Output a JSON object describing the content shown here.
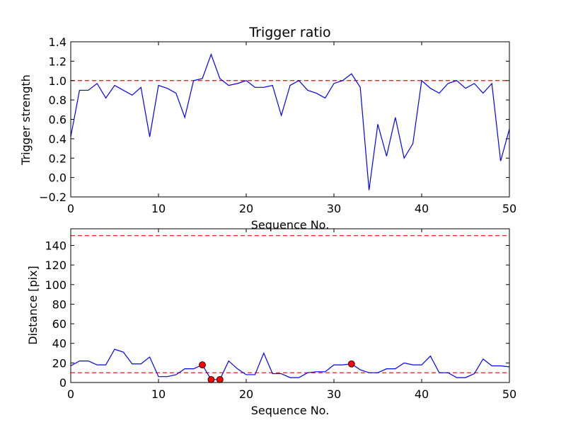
{
  "chart_data": [
    {
      "type": "line",
      "title": "Trigger ratio",
      "xlabel": "Sequence No.",
      "ylabel": "Trigger strength",
      "xlim": [
        0,
        50
      ],
      "ylim": [
        -0.2,
        1.4
      ],
      "xticks": [
        "0",
        "10",
        "20",
        "30",
        "40",
        "50"
      ],
      "yticks": [
        "−0.2",
        "0.0",
        "0.2",
        "0.4",
        "0.6",
        "0.8",
        "1.0",
        "1.2",
        "1.4"
      ],
      "line_color": "#0000ff",
      "threshold_color": "#ff0000",
      "thresholds": [
        1.0
      ],
      "series": [
        {
          "x": [
            0,
            1,
            2,
            3,
            4,
            5,
            6,
            7,
            8,
            9,
            10,
            11,
            12,
            13,
            14,
            15,
            16,
            17,
            18,
            19,
            20,
            21,
            22,
            23,
            24,
            25,
            26,
            27,
            28,
            29,
            30,
            31,
            32,
            33,
            34,
            35,
            36,
            37,
            38,
            39,
            40,
            41,
            42,
            43,
            44,
            45,
            46,
            47,
            48,
            49,
            50
          ],
          "values": [
            0.42,
            0.9,
            0.9,
            0.97,
            0.82,
            0.95,
            0.9,
            0.85,
            0.93,
            0.42,
            0.95,
            0.92,
            0.87,
            0.62,
            1.0,
            1.02,
            1.27,
            1.02,
            0.95,
            0.97,
            1.0,
            0.93,
            0.93,
            0.95,
            0.64,
            0.95,
            1.0,
            0.9,
            0.87,
            0.82,
            0.97,
            1.0,
            1.07,
            0.93,
            -0.13,
            0.55,
            0.22,
            0.62,
            0.2,
            0.35,
            1.0,
            0.92,
            0.87,
            0.97,
            1.0,
            0.92,
            0.97,
            0.87,
            0.97,
            0.17,
            0.5
          ]
        }
      ]
    },
    {
      "type": "line",
      "title": "",
      "xlabel": "Sequence No.",
      "ylabel": "Distance [pix]",
      "xlim": [
        0,
        50
      ],
      "ylim": [
        0,
        157
      ],
      "xticks": [
        "0",
        "10",
        "20",
        "30",
        "40",
        "50"
      ],
      "yticks": [
        "0",
        "20",
        "40",
        "60",
        "80",
        "100",
        "120",
        "140"
      ],
      "line_color": "#0000ff",
      "threshold_color": "#ff0000",
      "marker_color": "#ff0000",
      "thresholds": [
        10,
        150
      ],
      "series": [
        {
          "x": [
            0,
            1,
            2,
            3,
            4,
            5,
            6,
            7,
            8,
            9,
            10,
            11,
            12,
            13,
            14,
            15,
            16,
            17,
            18,
            19,
            20,
            21,
            22,
            23,
            24,
            25,
            26,
            27,
            28,
            29,
            30,
            31,
            32,
            33,
            34,
            35,
            36,
            37,
            38,
            39,
            40,
            41,
            42,
            43,
            44,
            45,
            46,
            47,
            48,
            49,
            50
          ],
          "values": [
            17,
            22,
            22,
            18,
            18,
            34,
            31,
            19,
            19,
            26,
            6,
            6,
            8,
            14,
            14,
            18,
            3,
            3,
            22,
            14,
            8,
            8,
            30,
            9,
            9,
            5,
            5,
            10,
            11,
            11,
            18,
            18,
            19,
            13,
            10,
            10,
            14,
            14,
            20,
            18,
            18,
            27,
            10,
            10,
            5,
            5,
            9,
            24,
            17,
            17,
            16
          ]
        },
        {
          "x": [
            15,
            16,
            17,
            32
          ],
          "values": [
            18,
            3,
            3,
            19
          ]
        }
      ]
    }
  ]
}
